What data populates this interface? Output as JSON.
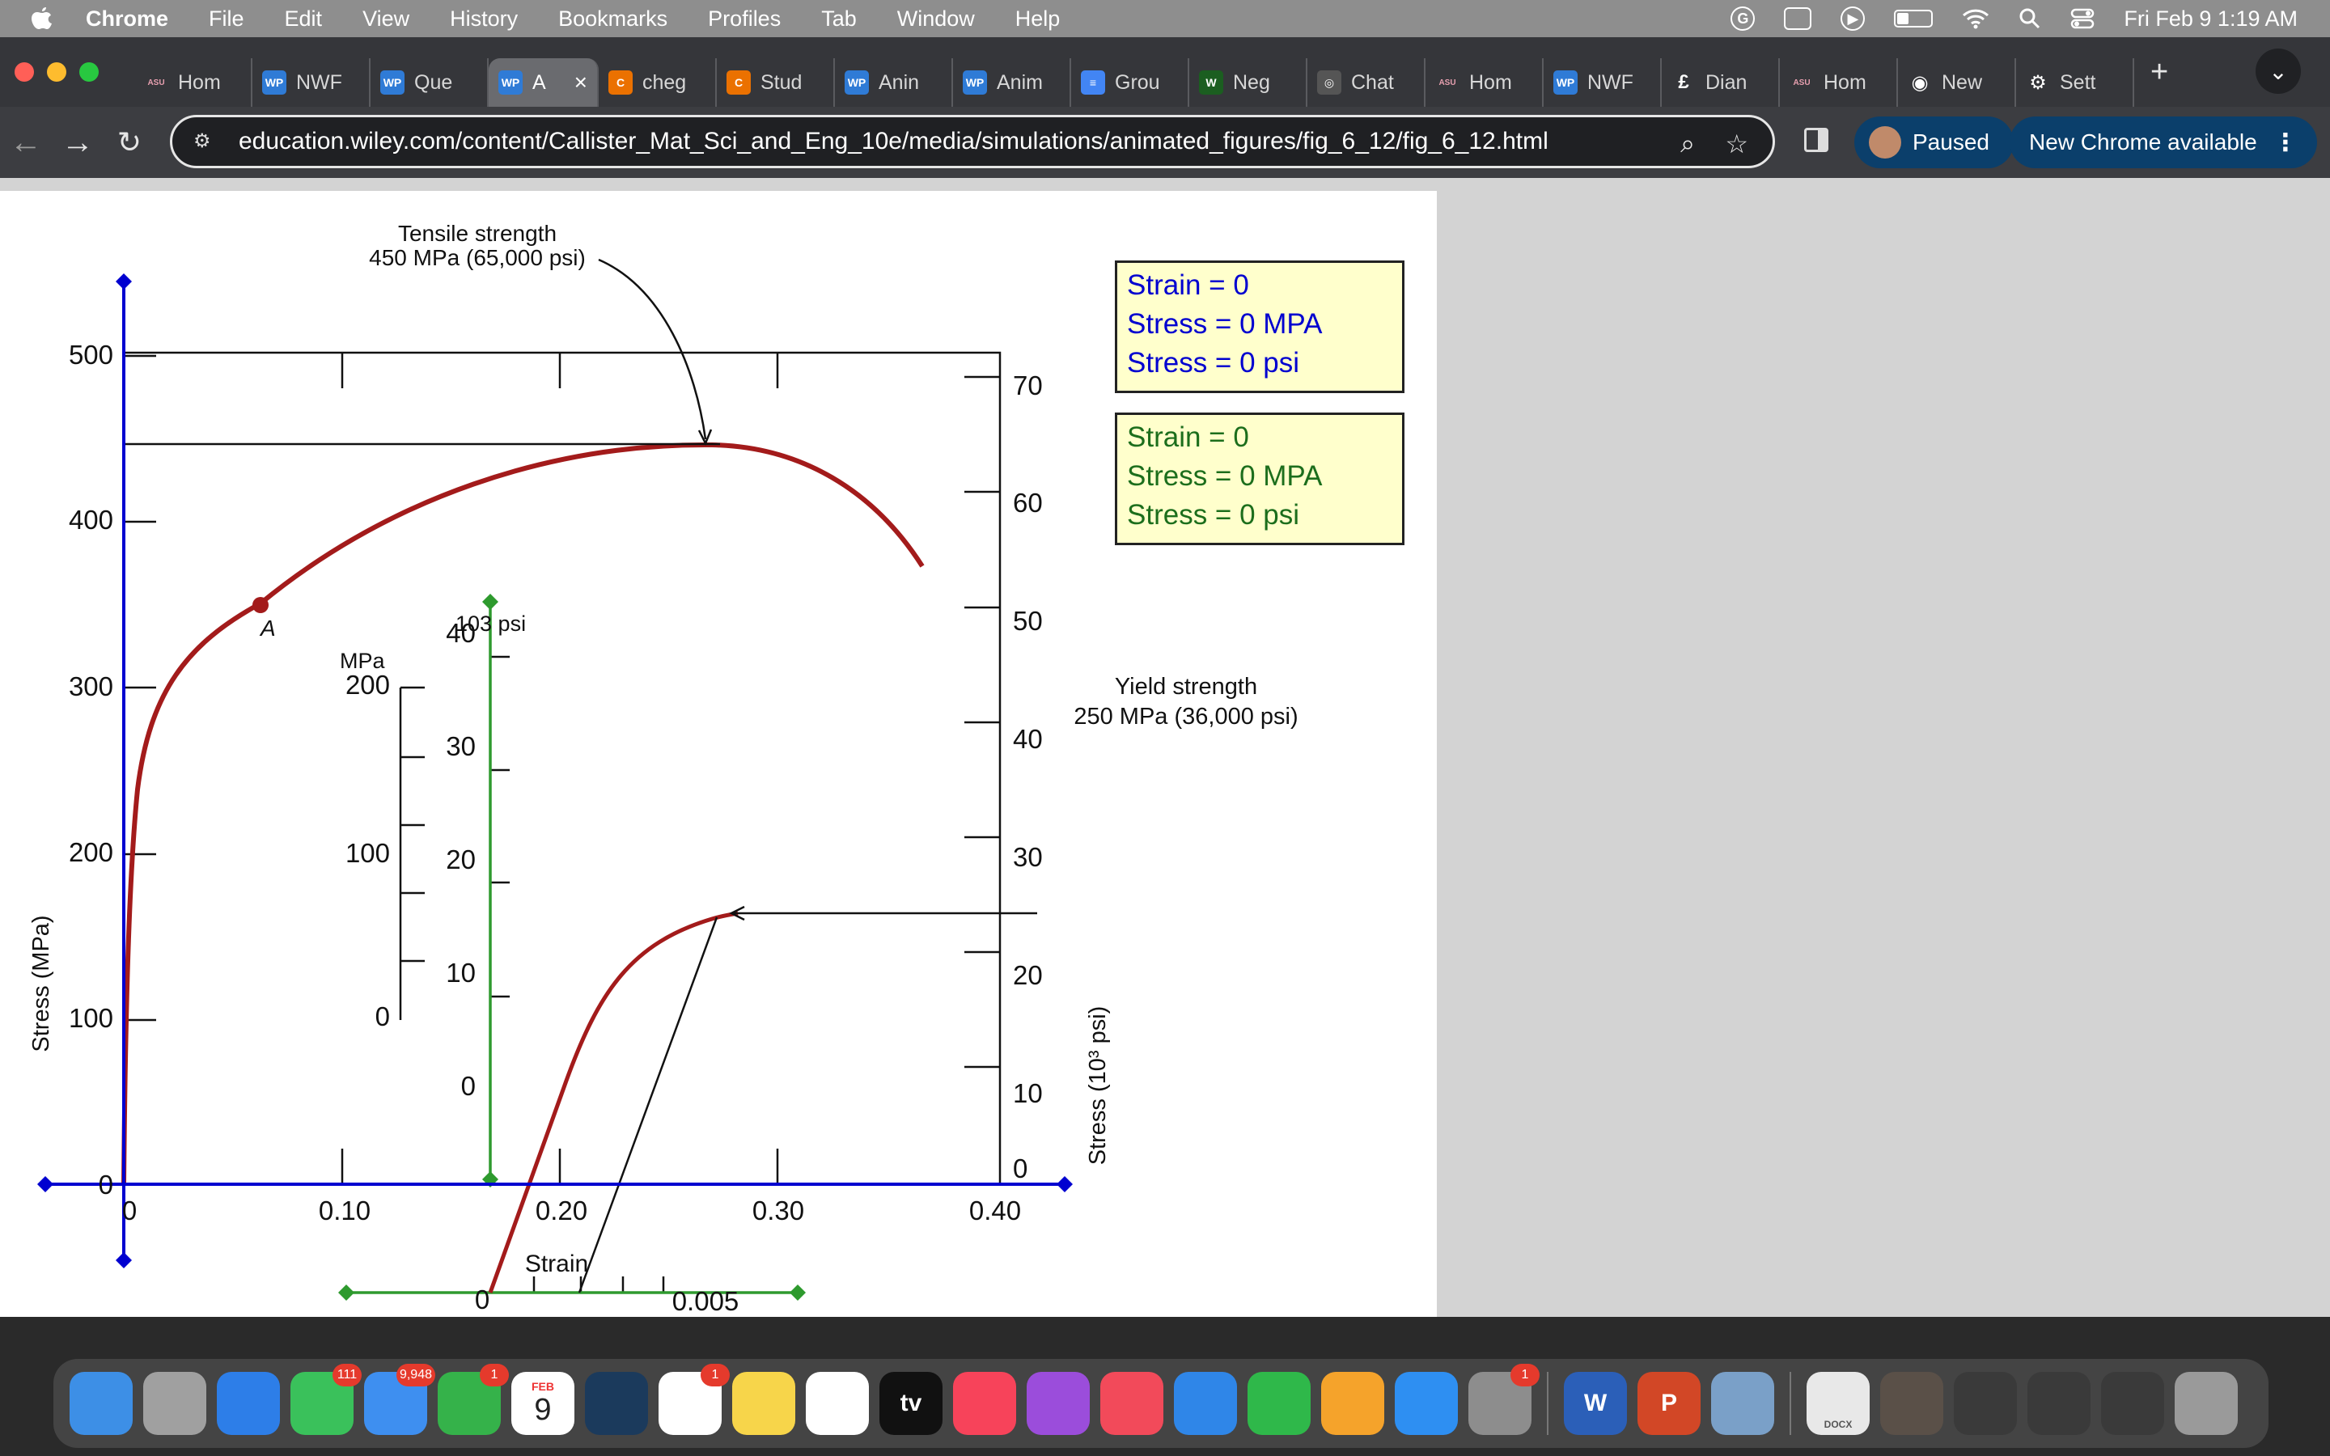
{
  "menubar": {
    "app": "Chrome",
    "items": [
      "File",
      "Edit",
      "View",
      "History",
      "Bookmarks",
      "Profiles",
      "Tab",
      "Window",
      "Help"
    ],
    "clock": "Fri Feb 9  1:19 AM"
  },
  "tabs": [
    {
      "label": "Hom",
      "icon": "asu-icon",
      "color": "#8c1d40"
    },
    {
      "label": "NWF",
      "icon": "wp-icon",
      "color": "#2f7bd6"
    },
    {
      "label": "Que",
      "icon": "wp-icon",
      "color": "#2f7bd6"
    },
    {
      "label": "A",
      "icon": "wp-icon",
      "color": "#2f7bd6",
      "active": true
    },
    {
      "label": "cheg",
      "icon": "chegg-icon",
      "color": "#eb7100"
    },
    {
      "label": "Stud",
      "icon": "chegg-icon",
      "color": "#eb7100"
    },
    {
      "label": "Anin",
      "icon": "wp-icon",
      "color": "#2f7bd6"
    },
    {
      "label": "Anim",
      "icon": "wp-icon",
      "color": "#2f7bd6"
    },
    {
      "label": "Grou",
      "icon": "docs-icon",
      "color": "#4285f4"
    },
    {
      "label": "Neg",
      "icon": "w-icon",
      "color": "#1b5e20"
    },
    {
      "label": "Chat",
      "icon": "chatgpt-icon",
      "color": "#555555"
    },
    {
      "label": "Hom",
      "icon": "asu-icon",
      "color": "#8c1d40"
    },
    {
      "label": "NWF",
      "icon": "wp-icon",
      "color": "#2f7bd6"
    },
    {
      "label": "Dian",
      "icon": "pound-icon",
      "color": "#35363a"
    },
    {
      "label": "Hom",
      "icon": "asu-icon",
      "color": "#8c1d40"
    },
    {
      "label": "New",
      "icon": "chrome-icon",
      "color": "#35363a"
    },
    {
      "label": "Sett",
      "icon": "gear-icon",
      "color": "#35363a"
    }
  ],
  "toolbar": {
    "url": "education.wiley.com/content/Callister_Mat_Sci_and_Eng_10e/media/simulations/animated_figures/fig_6_12/fig_6_12.html",
    "profile_status": "Paused",
    "update_label": "New Chrome available"
  },
  "readouts": {
    "blue": {
      "strain": "Strain = 0",
      "stress_mpa": "Stress = 0 MPA",
      "stress_psi": "Stress = 0 psi",
      "color": "#0000d0"
    },
    "green": {
      "strain": "Strain = 0",
      "stress_mpa": "Stress = 0 MPA",
      "stress_psi": "Stress = 0 psi",
      "color": "#1c6e1c"
    }
  },
  "graph": {
    "tensile_line1": "Tensile strength",
    "tensile_line2": "450 MPa (65,000 psi)",
    "yield_line1": "Yield strength",
    "yield_line2": "250 MPa (36,000 psi)",
    "point_label": "A",
    "y_left_label": "Stress (MPa)",
    "y_right_label": "Stress (10³ psi)",
    "x_label": "Strain",
    "x_ticks": [
      "0",
      "0.10",
      "0.20",
      "0.30",
      "0.40"
    ],
    "y_left_ticks": [
      "0",
      "100",
      "200",
      "300",
      "400",
      "500"
    ],
    "y_right_ticks": [
      "0",
      "10",
      "20",
      "30",
      "40",
      "50",
      "60",
      "70"
    ],
    "inset": {
      "psi_unit": "103 psi",
      "mpa_unit": "MPa",
      "mpa_ticks": [
        "0",
        "100",
        "200"
      ],
      "psi_ticks": [
        "0",
        "10",
        "20",
        "30",
        "40"
      ],
      "x_tick_zero": "0",
      "x_tick_label": "0.005"
    },
    "curve_color": "#a31b1b",
    "axis_color": "#0000d0",
    "inset_axis_color": "#2e9a2e"
  },
  "dock": [
    {
      "name": "finder-icon",
      "color": "#3d8fe6"
    },
    {
      "name": "launchpad-icon",
      "color": "#a0a0a0"
    },
    {
      "name": "safari-icon",
      "color": "#2d7ee8"
    },
    {
      "name": "messages-icon",
      "color": "#3ac15b",
      "badge": "111"
    },
    {
      "name": "mail-icon",
      "color": "#3e8ff0",
      "badge": "9,948"
    },
    {
      "name": "facetime-icon",
      "color": "#35b24a",
      "badge": "1"
    },
    {
      "name": "calendar-icon",
      "color": "#ffffff",
      "month": "FEB",
      "day": "9"
    },
    {
      "name": "steam-icon",
      "color": "#1b3a5c"
    },
    {
      "name": "reminders-icon",
      "color": "#ffffff",
      "badge": "1"
    },
    {
      "name": "notes-icon",
      "color": "#f7d54a"
    },
    {
      "name": "chrome-icon",
      "color": "#ffffff"
    },
    {
      "name": "appletv-icon",
      "color": "#111111",
      "text": "tv"
    },
    {
      "name": "music-icon",
      "color": "#f7435a"
    },
    {
      "name": "podcasts-icon",
      "color": "#9b4ddb"
    },
    {
      "name": "news-icon",
      "color": "#f24a5a"
    },
    {
      "name": "keynote-icon",
      "color": "#2f86e8"
    },
    {
      "name": "numbers-icon",
      "color": "#2fb84a"
    },
    {
      "name": "pages-icon",
      "color": "#f5a32b"
    },
    {
      "name": "appstore-icon",
      "color": "#2e8ff2"
    },
    {
      "name": "system-settings-icon",
      "color": "#8d8d8d",
      "badge": "1"
    },
    {
      "name": "word-icon",
      "color": "#2b5fb8",
      "text": "W"
    },
    {
      "name": "powerpoint-icon",
      "color": "#d24726",
      "text": "P"
    },
    {
      "name": "preview-icon",
      "color": "#7aa0c8"
    },
    {
      "name": "document-icon",
      "color": "#e8e8e8",
      "text": "DOCX"
    },
    {
      "name": "image-thumbnail-icon",
      "color": "#5a5048"
    },
    {
      "name": "window-thumbnail-icon",
      "color": "#3a3a3a"
    },
    {
      "name": "window-thumbnail-icon",
      "color": "#3a3a3a"
    },
    {
      "name": "window-thumbnail-icon",
      "color": "#3a3a3a"
    },
    {
      "name": "trash-icon",
      "color": "#9a9a9a"
    }
  ]
}
